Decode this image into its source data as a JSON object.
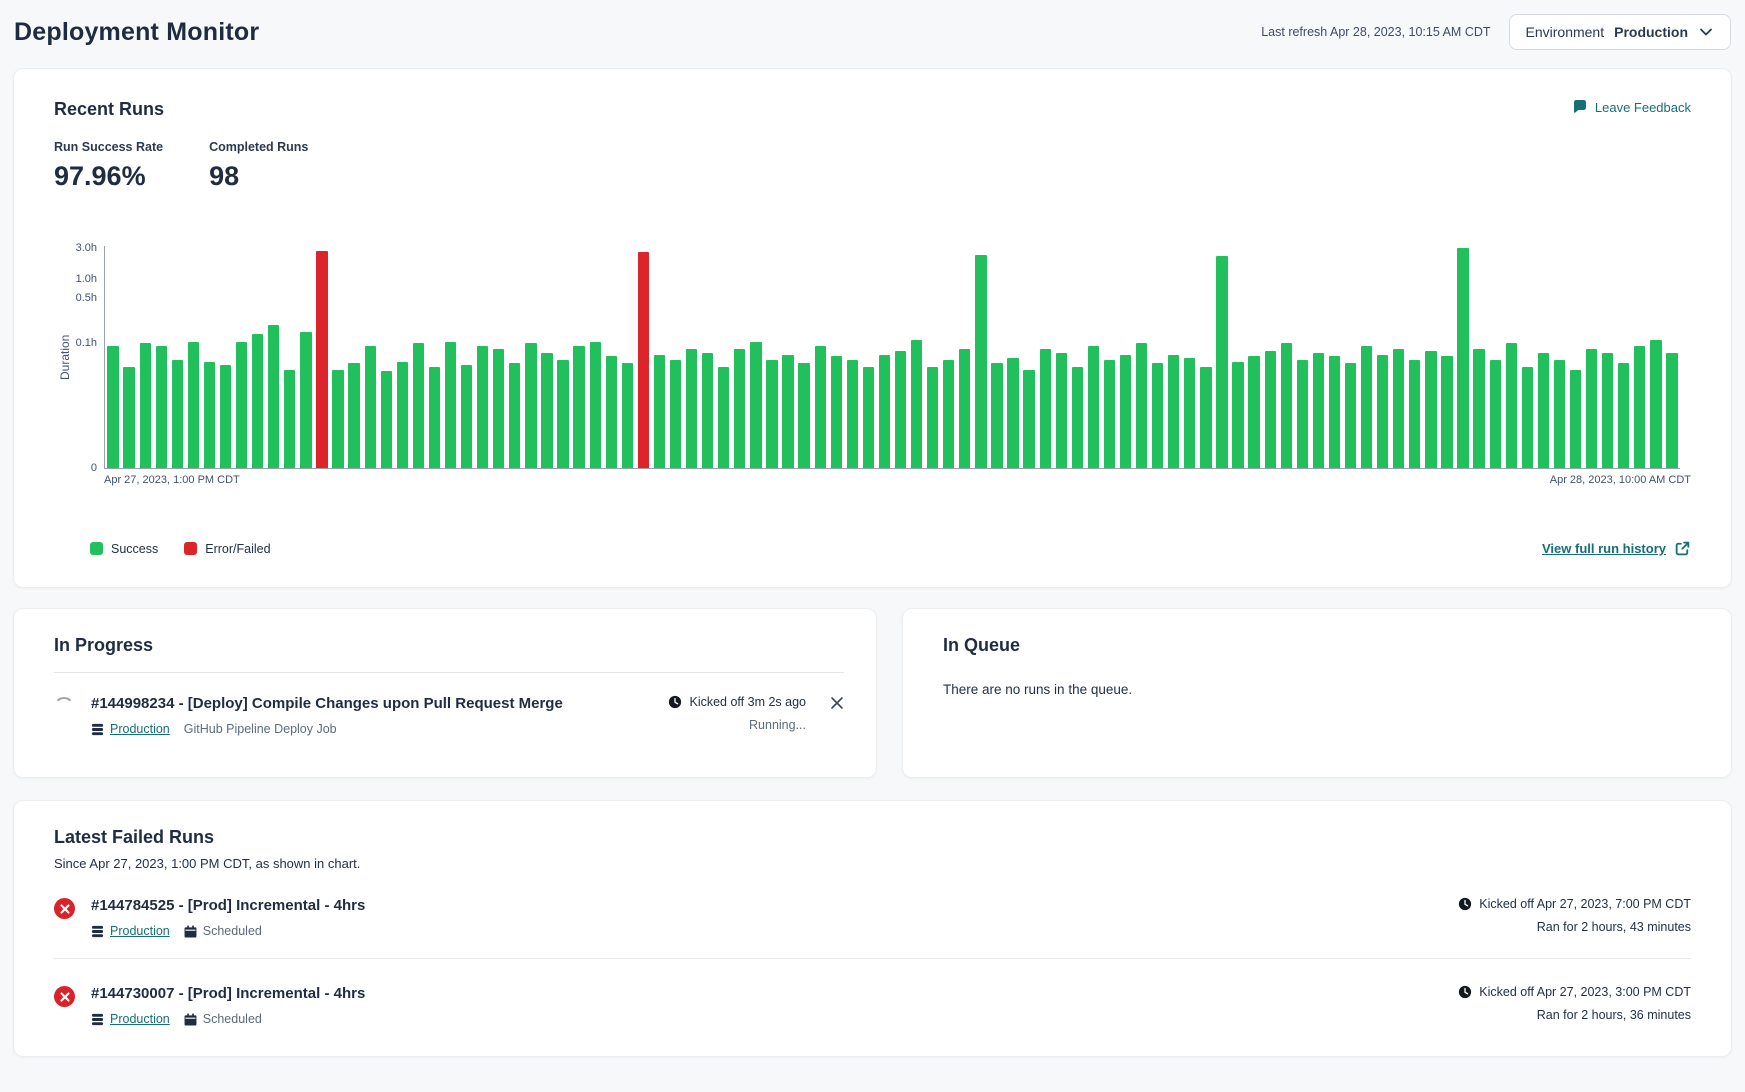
{
  "page": {
    "title": "Deployment Monitor",
    "last_refresh": "Last refresh Apr 28, 2023, 10:15 AM CDT"
  },
  "environment_selector": {
    "label": "Environment",
    "value": "Production"
  },
  "recent_runs": {
    "title": "Recent Runs",
    "feedback_label": "Leave Feedback",
    "stats": [
      {
        "label": "Run Success Rate",
        "value": "97.96%"
      },
      {
        "label": "Completed Runs",
        "value": "98"
      }
    ],
    "view_history_label": "View full run history"
  },
  "chart_data": {
    "type": "bar",
    "title": "",
    "ylabel": "Duration",
    "yticks": [
      "3.0h",
      "1.0h",
      "0.5h",
      "0.1h",
      "0"
    ],
    "ytick_values": [
      3.0,
      1.0,
      0.5,
      0.1,
      0
    ],
    "y_scale": "log above 0.1h, compressed toward 0 below",
    "x_start_label": "Apr 27, 2023, 1:00 PM CDT",
    "x_end_label": "Apr 28, 2023, 10:00 AM CDT",
    "legend": [
      {
        "label": "Success",
        "color": "#22c05c"
      },
      {
        "label": "Error/Failed",
        "color": "#db252b"
      }
    ],
    "runs_format": [
      "duration_hours",
      "status"
    ],
    "runs": [
      [
        0.095,
        "success"
      ],
      [
        0.065,
        "success"
      ],
      [
        0.1,
        "success"
      ],
      [
        0.095,
        "success"
      ],
      [
        0.075,
        "success"
      ],
      [
        0.105,
        "success"
      ],
      [
        0.072,
        "success"
      ],
      [
        0.068,
        "success"
      ],
      [
        0.105,
        "success"
      ],
      [
        0.14,
        "success"
      ],
      [
        0.19,
        "success"
      ],
      [
        0.062,
        "success"
      ],
      [
        0.15,
        "success"
      ],
      [
        2.72,
        "failed"
      ],
      [
        0.062,
        "success"
      ],
      [
        0.07,
        "success"
      ],
      [
        0.095,
        "success"
      ],
      [
        0.06,
        "success"
      ],
      [
        0.072,
        "success"
      ],
      [
        0.1,
        "success"
      ],
      [
        0.065,
        "success"
      ],
      [
        0.105,
        "success"
      ],
      [
        0.068,
        "success"
      ],
      [
        0.095,
        "success"
      ],
      [
        0.09,
        "success"
      ],
      [
        0.07,
        "success"
      ],
      [
        0.1,
        "success"
      ],
      [
        0.085,
        "success"
      ],
      [
        0.075,
        "success"
      ],
      [
        0.095,
        "success"
      ],
      [
        0.105,
        "success"
      ],
      [
        0.08,
        "success"
      ],
      [
        0.07,
        "success"
      ],
      [
        2.6,
        "failed"
      ],
      [
        0.082,
        "success"
      ],
      [
        0.075,
        "success"
      ],
      [
        0.09,
        "success"
      ],
      [
        0.085,
        "success"
      ],
      [
        0.065,
        "success"
      ],
      [
        0.09,
        "success"
      ],
      [
        0.105,
        "success"
      ],
      [
        0.075,
        "success"
      ],
      [
        0.082,
        "success"
      ],
      [
        0.07,
        "success"
      ],
      [
        0.095,
        "success"
      ],
      [
        0.08,
        "success"
      ],
      [
        0.075,
        "success"
      ],
      [
        0.065,
        "success"
      ],
      [
        0.082,
        "success"
      ],
      [
        0.088,
        "success"
      ],
      [
        0.11,
        "success"
      ],
      [
        0.065,
        "success"
      ],
      [
        0.075,
        "success"
      ],
      [
        0.09,
        "success"
      ],
      [
        2.4,
        "success"
      ],
      [
        0.07,
        "success"
      ],
      [
        0.078,
        "success"
      ],
      [
        0.062,
        "success"
      ],
      [
        0.09,
        "success"
      ],
      [
        0.085,
        "success"
      ],
      [
        0.065,
        "success"
      ],
      [
        0.095,
        "success"
      ],
      [
        0.075,
        "success"
      ],
      [
        0.082,
        "success"
      ],
      [
        0.1,
        "success"
      ],
      [
        0.07,
        "success"
      ],
      [
        0.082,
        "success"
      ],
      [
        0.078,
        "success"
      ],
      [
        0.065,
        "success"
      ],
      [
        2.3,
        "success"
      ],
      [
        0.072,
        "success"
      ],
      [
        0.08,
        "success"
      ],
      [
        0.088,
        "success"
      ],
      [
        0.1,
        "success"
      ],
      [
        0.075,
        "success"
      ],
      [
        0.085,
        "success"
      ],
      [
        0.08,
        "success"
      ],
      [
        0.07,
        "success"
      ],
      [
        0.095,
        "success"
      ],
      [
        0.082,
        "success"
      ],
      [
        0.09,
        "success"
      ],
      [
        0.075,
        "success"
      ],
      [
        0.088,
        "success"
      ],
      [
        0.08,
        "success"
      ],
      [
        3.0,
        "success"
      ],
      [
        0.09,
        "success"
      ],
      [
        0.075,
        "success"
      ],
      [
        0.1,
        "success"
      ],
      [
        0.065,
        "success"
      ],
      [
        0.085,
        "success"
      ],
      [
        0.075,
        "success"
      ],
      [
        0.062,
        "success"
      ],
      [
        0.09,
        "success"
      ],
      [
        0.085,
        "success"
      ],
      [
        0.07,
        "success"
      ],
      [
        0.095,
        "success"
      ],
      [
        0.11,
        "success"
      ],
      [
        0.085,
        "success"
      ]
    ]
  },
  "in_progress": {
    "title": "In Progress",
    "run": {
      "name": "#144998234 - [Deploy] Compile Changes upon Pull Request Merge",
      "environment": "Production",
      "job_type": "GitHub Pipeline Deploy Job",
      "kicked_off": "Kicked off 3m 2s ago",
      "status": "Running..."
    }
  },
  "in_queue": {
    "title": "In Queue",
    "empty_message": "There are no runs in the queue."
  },
  "latest_failed": {
    "title": "Latest Failed Runs",
    "subtitle": "Since Apr 27, 2023, 1:00 PM CDT, as shown in chart.",
    "runs": [
      {
        "name": "#144784525 - [Prod] Incremental - 4hrs",
        "environment": "Production",
        "schedule": "Scheduled",
        "kicked_off": "Kicked off Apr 27, 2023, 7:00 PM CDT",
        "ran_for": "Ran for 2 hours, 43 minutes"
      },
      {
        "name": "#144730007 - [Prod] Incremental - 4hrs",
        "environment": "Production",
        "schedule": "Scheduled",
        "kicked_off": "Kicked off Apr 27, 2023, 3:00 PM CDT",
        "ran_for": "Ran for 2 hours, 36 minutes"
      }
    ]
  },
  "icons": {
    "feedback": "speech-bubble-icon",
    "dropdown": "chevron-down-icon",
    "history": "external-link-icon",
    "kicked_off": "clock-icon",
    "environment": "database-stack-icon",
    "schedule": "calendar-icon",
    "close": "x-icon",
    "failed": "x-circle-icon",
    "in_progress": "spinner-icon"
  },
  "colors": {
    "success": "#22c05c",
    "failed": "#db252b",
    "failed_badge": "#d8232a",
    "accent_teal": "#156f77",
    "page_bg": "#f7f8f9",
    "ink": "#1f2c42"
  }
}
